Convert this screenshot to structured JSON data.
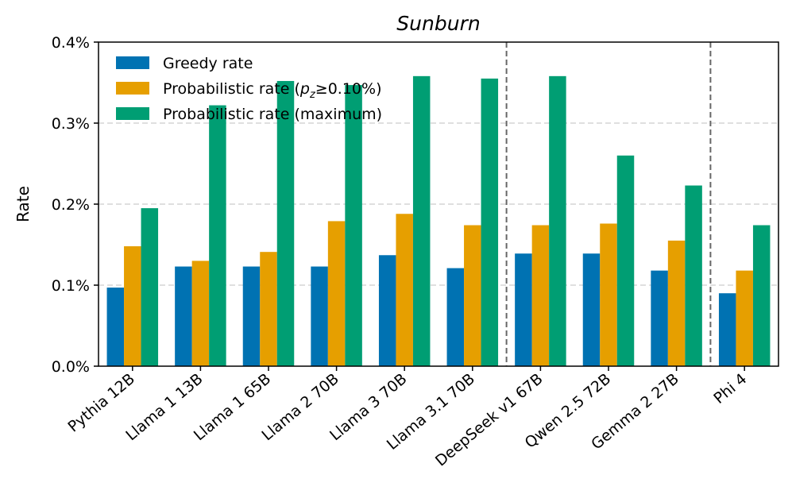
{
  "chart_data": {
    "type": "bar",
    "title": "Sunburn",
    "xlabel": "",
    "ylabel": "Rate",
    "ylim": [
      0,
      0.4
    ],
    "yticks": [
      0.0,
      0.1,
      0.2,
      0.3,
      0.4
    ],
    "ytick_labels": [
      "0.0%",
      "0.1%",
      "0.2%",
      "0.3%",
      "0.4%"
    ],
    "grid": "horizontal dashed",
    "legend_position": "top-left",
    "categories": [
      "Pythia 12B",
      "Llama 1 13B",
      "Llama 1 65B",
      "Llama 2 70B",
      "Llama 3 70B",
      "Llama 3.1 70B",
      "DeepSeek v1 67B",
      "Qwen 2.5 72B",
      "Gemma 2 27B",
      "Phi 4"
    ],
    "separators_after": [
      "Llama 3.1 70B",
      "Gemma 2 27B"
    ],
    "series": [
      {
        "name": "Greedy rate",
        "legend_label": "Greedy rate",
        "color": "#0072b2",
        "values": [
          0.097,
          0.123,
          0.123,
          0.123,
          0.137,
          0.121,
          0.139,
          0.139,
          0.118,
          0.09
        ]
      },
      {
        "name": "Probabilistic rate (p_z≥0.10%)",
        "legend_label": "Probabilistic rate (",
        "legend_label_p": "p",
        "legend_label_sub": "z",
        "legend_label_tail": "≥0.10%)",
        "color": "#e69f00",
        "values": [
          0.148,
          0.13,
          0.141,
          0.179,
          0.188,
          0.174,
          0.174,
          0.176,
          0.155,
          0.118
        ]
      },
      {
        "name": "Probabilistic rate (maximum)",
        "legend_label": "Probabilistic rate (maximum)",
        "color": "#009e73",
        "values": [
          0.195,
          0.322,
          0.352,
          0.347,
          0.358,
          0.355,
          0.358,
          0.26,
          0.223,
          0.174
        ]
      }
    ]
  }
}
